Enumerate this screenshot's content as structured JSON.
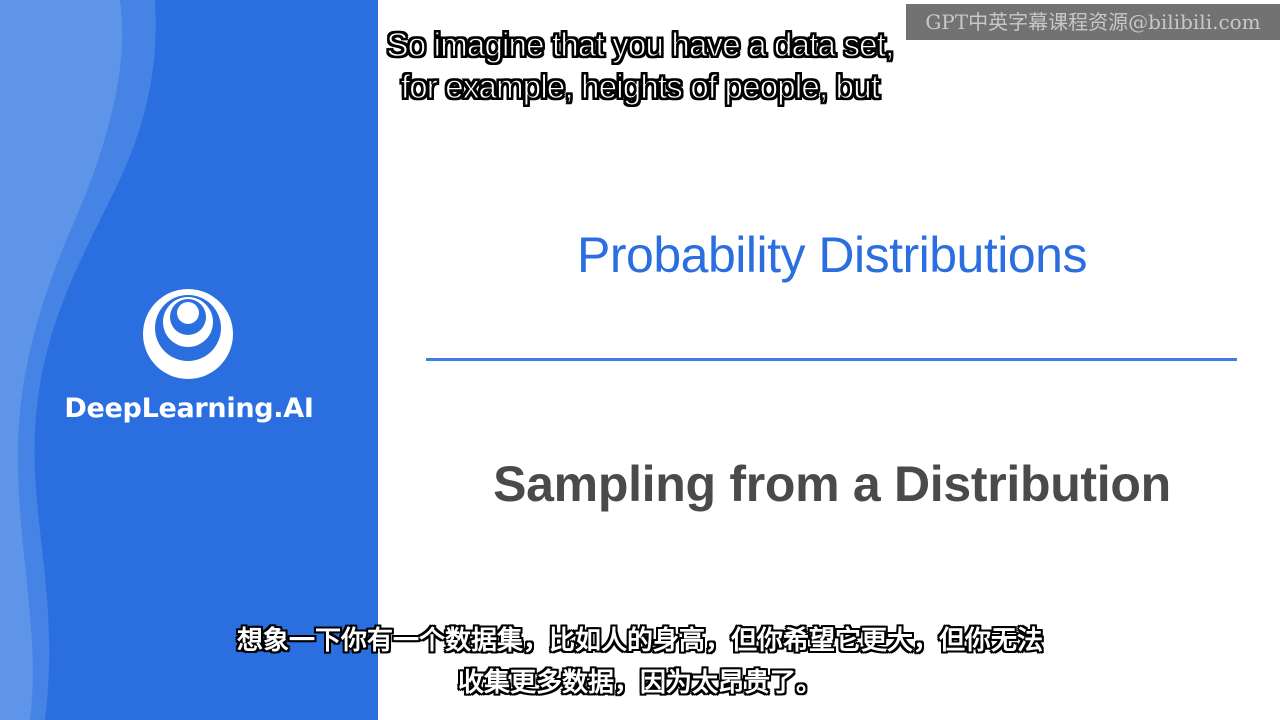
{
  "brand": {
    "name": "DeepLearning.AI",
    "logo_icon": "deeplearning-ai-logo-icon",
    "panel_color": "#2a6ee0"
  },
  "slide": {
    "title": "Probability Distributions",
    "subtitle": "Sampling from a Distribution",
    "title_color": "#2a6ee0",
    "subtitle_color": "#4a4a4a",
    "divider_color": "#3b7de0"
  },
  "watermark": {
    "text": "GPT中英字幕课程资源@bilibili.com"
  },
  "captions": {
    "english": [
      "So imagine that you have a data set,",
      "for example, heights of people, but"
    ],
    "chinese": [
      "想象一下你有一个数据集，比如人的身高，但你希望它更大，但你无法",
      "收集更多数据，因为太昂贵了。"
    ]
  }
}
